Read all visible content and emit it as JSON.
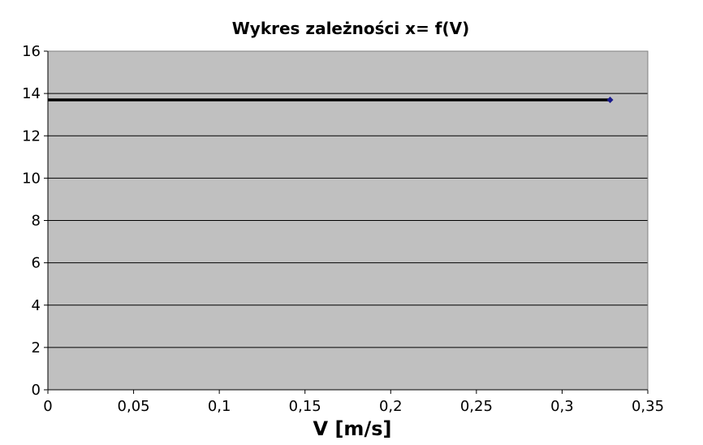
{
  "chart_data": {
    "type": "line",
    "title": "Wykres zależności x= f(V)",
    "xlabel": "V [m/s]",
    "ylabel": "",
    "xlim": [
      0,
      0.35
    ],
    "ylim": [
      0,
      16
    ],
    "x_ticks": [
      "0",
      "0,05",
      "0,1",
      "0,15",
      "0,2",
      "0,25",
      "0,3",
      "0,35"
    ],
    "y_ticks": [
      "0",
      "2",
      "4",
      "6",
      "8",
      "10",
      "12",
      "14",
      "16"
    ],
    "grid": "horizontal",
    "legend": "none",
    "series": [
      {
        "x": [
          0,
          0.328
        ],
        "y": [
          13.7,
          13.7
        ],
        "line_color": "#000000",
        "marker_color": "#1a1a8c",
        "marker": "diamond"
      }
    ],
    "plot_background": "#c0c0c0"
  }
}
